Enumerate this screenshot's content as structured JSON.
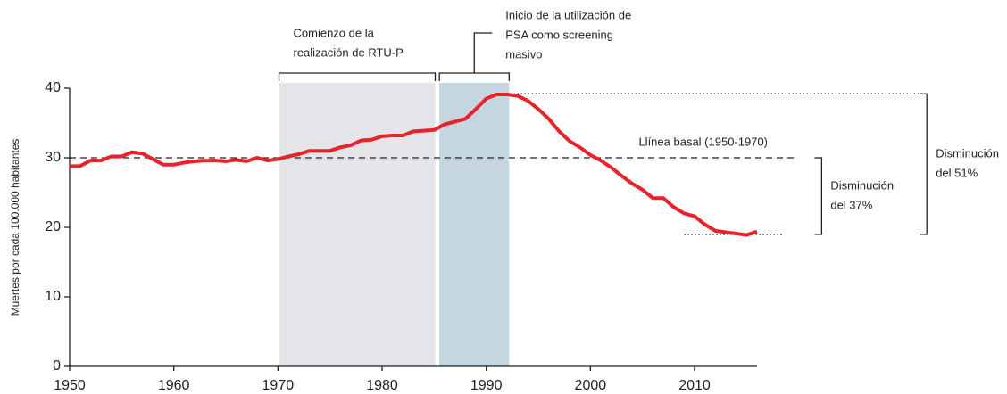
{
  "chart_data": {
    "type": "line",
    "y_label": "Muertes por cada 100.000 habitantes",
    "color": "#e8232a",
    "x": [
      1950,
      1951,
      1952,
      1953,
      1954,
      1955,
      1956,
      1957,
      1958,
      1959,
      1960,
      1961,
      1962,
      1963,
      1964,
      1965,
      1966,
      1967,
      1968,
      1969,
      1970,
      1971,
      1972,
      1973,
      1974,
      1975,
      1976,
      1977,
      1978,
      1979,
      1980,
      1981,
      1982,
      1983,
      1984,
      1985,
      1986,
      1987,
      1988,
      1989,
      1990,
      1991,
      1992,
      1993,
      1994,
      1995,
      1996,
      1997,
      1998,
      1999,
      2000,
      2001,
      2002,
      2003,
      2004,
      2005,
      2006,
      2007,
      2008,
      2009,
      2010,
      2011,
      2012,
      2013,
      2014,
      2015,
      2016
    ],
    "values": [
      28.8,
      28.8,
      29.6,
      29.6,
      30.2,
      30.2,
      30.8,
      30.6,
      29.8,
      29.0,
      29.0,
      29.3,
      29.5,
      29.6,
      29.6,
      29.5,
      29.7,
      29.5,
      30.0,
      29.6,
      29.8,
      30.2,
      30.5,
      31.0,
      31.0,
      31.0,
      31.5,
      31.8,
      32.5,
      32.6,
      33.1,
      33.2,
      33.2,
      33.8,
      33.9,
      34.0,
      34.8,
      35.2,
      35.6,
      37.0,
      38.5,
      39.1,
      39.1,
      38.9,
      38.2,
      37.0,
      35.6,
      33.8,
      32.4,
      31.5,
      30.4,
      29.6,
      28.6,
      27.4,
      26.3,
      25.4,
      24.2,
      24.2,
      22.9,
      22.0,
      21.6,
      20.4,
      19.5,
      19.3,
      19.1,
      18.9,
      19.4
    ],
    "xlim": [
      1950,
      2016
    ],
    "ylim": [
      0,
      40
    ],
    "xticks": [
      1950,
      1960,
      1970,
      1980,
      1990,
      2000,
      2010
    ],
    "yticks": [
      0,
      10,
      20,
      30,
      40
    ],
    "grid": false,
    "regions": [
      {
        "x": [
          1970.1,
          1985.1
        ],
        "color": "#e4e5e8",
        "label": [
          "Comienzo de la",
          "realización de RTU-P"
        ]
      },
      {
        "x": [
          1985.5,
          1992.2
        ],
        "color": "#c5d6e0",
        "label": [
          "Inicio de la utilización de",
          "PSA como screening",
          "masivo"
        ]
      }
    ],
    "reference_lines": [
      {
        "y": 30,
        "x": [
          1950,
          2019.6
        ],
        "style": "dashed",
        "label": "Llínea basal (1950-1970)"
      },
      {
        "y": 39.2,
        "x": [
          1992.3,
          2032.3
        ],
        "style": "dotted"
      },
      {
        "y": 19,
        "x": [
          2009,
          2018.5
        ],
        "style": "dotted"
      }
    ],
    "brackets": [
      {
        "y": [
          19,
          30
        ],
        "x": 2022.2,
        "label": [
          "Disminución",
          "del 37%"
        ]
      },
      {
        "y": [
          19,
          39.2
        ],
        "x": 2032.3,
        "label": [
          "Disminución",
          "del 51%"
        ]
      }
    ]
  }
}
